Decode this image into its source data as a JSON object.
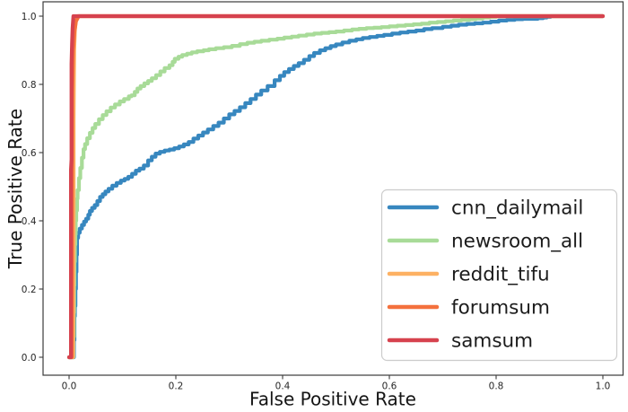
{
  "chart_data": {
    "type": "line",
    "subtype": "roc_curves",
    "title": "",
    "xlabel": "False Positive Rate",
    "ylabel": "True Positive Rate",
    "x_ticks": [
      "0.0",
      "0.2",
      "0.4",
      "0.6",
      "0.8",
      "1.0"
    ],
    "y_ticks": [
      "0.0",
      "0.2",
      "0.4",
      "0.6",
      "0.8",
      "1.0"
    ],
    "xlim": [
      -0.05,
      1.04
    ],
    "ylim": [
      -0.05,
      1.04
    ],
    "grid": false,
    "legend_position": "lower right",
    "series": [
      {
        "name": "cnn_dailymail",
        "color": "#3787bf",
        "step": true,
        "points": [
          [
            0,
            0
          ],
          [
            0.009,
            0
          ],
          [
            0.009,
            0.05
          ],
          [
            0.01,
            0.09
          ],
          [
            0.01,
            0.12
          ],
          [
            0.011,
            0.15
          ],
          [
            0.012,
            0.17
          ],
          [
            0.012,
            0.2
          ],
          [
            0.013,
            0.225
          ],
          [
            0.013,
            0.25
          ],
          [
            0.014,
            0.27
          ],
          [
            0.014,
            0.3
          ],
          [
            0.015,
            0.32
          ],
          [
            0.015,
            0.35
          ],
          [
            0.017,
            0.365
          ],
          [
            0.02,
            0.377
          ],
          [
            0.024,
            0.388
          ],
          [
            0.028,
            0.398
          ],
          [
            0.032,
            0.406
          ],
          [
            0.036,
            0.418
          ],
          [
            0.039,
            0.429
          ],
          [
            0.043,
            0.438
          ],
          [
            0.048,
            0.446
          ],
          [
            0.053,
            0.458
          ],
          [
            0.058,
            0.47
          ],
          [
            0.063,
            0.478
          ],
          [
            0.068,
            0.486
          ],
          [
            0.074,
            0.494
          ],
          [
            0.081,
            0.503
          ],
          [
            0.089,
            0.511
          ],
          [
            0.097,
            0.518
          ],
          [
            0.104,
            0.523
          ],
          [
            0.111,
            0.529
          ],
          [
            0.118,
            0.538
          ],
          [
            0.125,
            0.547
          ],
          [
            0.132,
            0.553
          ],
          [
            0.14,
            0.562
          ],
          [
            0.148,
            0.577
          ],
          [
            0.155,
            0.588
          ],
          [
            0.162,
            0.597
          ],
          [
            0.17,
            0.602
          ],
          [
            0.179,
            0.606
          ],
          [
            0.188,
            0.609
          ],
          [
            0.197,
            0.613
          ],
          [
            0.206,
            0.618
          ],
          [
            0.215,
            0.624
          ],
          [
            0.224,
            0.631
          ],
          [
            0.233,
            0.641
          ],
          [
            0.242,
            0.65
          ],
          [
            0.251,
            0.659
          ],
          [
            0.26,
            0.668
          ],
          [
            0.27,
            0.678
          ],
          [
            0.28,
            0.688
          ],
          [
            0.29,
            0.7
          ],
          [
            0.3,
            0.712
          ],
          [
            0.31,
            0.722
          ],
          [
            0.32,
            0.733
          ],
          [
            0.33,
            0.745
          ],
          [
            0.34,
            0.757
          ],
          [
            0.35,
            0.77
          ],
          [
            0.36,
            0.782
          ],
          [
            0.372,
            0.795
          ],
          [
            0.385,
            0.812
          ],
          [
            0.395,
            0.825
          ],
          [
            0.403,
            0.836
          ],
          [
            0.412,
            0.845
          ],
          [
            0.421,
            0.854
          ],
          [
            0.43,
            0.862
          ],
          [
            0.44,
            0.872
          ],
          [
            0.45,
            0.883
          ],
          [
            0.459,
            0.892
          ],
          [
            0.47,
            0.9
          ],
          [
            0.48,
            0.906
          ],
          [
            0.49,
            0.912
          ],
          [
            0.5,
            0.917
          ],
          [
            0.512,
            0.923
          ],
          [
            0.525,
            0.928
          ],
          [
            0.538,
            0.932
          ],
          [
            0.55,
            0.936
          ],
          [
            0.563,
            0.939
          ],
          [
            0.577,
            0.942
          ],
          [
            0.59,
            0.945
          ],
          [
            0.605,
            0.949
          ],
          [
            0.62,
            0.952
          ],
          [
            0.635,
            0.955
          ],
          [
            0.65,
            0.958
          ],
          [
            0.665,
            0.962
          ],
          [
            0.68,
            0.965
          ],
          [
            0.7,
            0.969
          ],
          [
            0.716,
            0.972
          ],
          [
            0.73,
            0.975
          ],
          [
            0.745,
            0.977
          ],
          [
            0.76,
            0.979
          ],
          [
            0.775,
            0.981
          ],
          [
            0.79,
            0.984
          ],
          [
            0.805,
            0.987
          ],
          [
            0.82,
            0.989
          ],
          [
            0.835,
            0.991
          ],
          [
            0.85,
            0.992
          ],
          [
            0.865,
            0.992
          ],
          [
            0.878,
            0.994
          ],
          [
            0.888,
            0.996
          ],
          [
            0.895,
            0.998
          ],
          [
            0.902,
            1.0
          ],
          [
            1,
            1
          ]
        ]
      },
      {
        "name": "newsroom_all",
        "color": "#a8db98",
        "step": true,
        "points": [
          [
            0,
            0
          ],
          [
            0.008,
            0
          ],
          [
            0.008,
            0.06
          ],
          [
            0.009,
            0.13
          ],
          [
            0.0095,
            0.21
          ],
          [
            0.01,
            0.28
          ],
          [
            0.011,
            0.33
          ],
          [
            0.0118,
            0.36
          ],
          [
            0.0125,
            0.4
          ],
          [
            0.0135,
            0.43
          ],
          [
            0.015,
            0.465
          ],
          [
            0.016,
            0.49
          ],
          [
            0.0185,
            0.525
          ],
          [
            0.021,
            0.555
          ],
          [
            0.024,
            0.585
          ],
          [
            0.027,
            0.61
          ],
          [
            0.03,
            0.625
          ],
          [
            0.034,
            0.642
          ],
          [
            0.039,
            0.658
          ],
          [
            0.044,
            0.672
          ],
          [
            0.049,
            0.684
          ],
          [
            0.056,
            0.698
          ],
          [
            0.063,
            0.71
          ],
          [
            0.07,
            0.721
          ],
          [
            0.078,
            0.732
          ],
          [
            0.086,
            0.741
          ],
          [
            0.095,
            0.75
          ],
          [
            0.103,
            0.757
          ],
          [
            0.112,
            0.765
          ],
          [
            0.117,
            0.768
          ],
          [
            0.123,
            0.778
          ],
          [
            0.128,
            0.788
          ],
          [
            0.134,
            0.795
          ],
          [
            0.141,
            0.803
          ],
          [
            0.148,
            0.81
          ],
          [
            0.155,
            0.818
          ],
          [
            0.163,
            0.827
          ],
          [
            0.171,
            0.838
          ],
          [
            0.179,
            0.848
          ],
          [
            0.188,
            0.856
          ],
          [
            0.194,
            0.866
          ],
          [
            0.198,
            0.875
          ],
          [
            0.205,
            0.881
          ],
          [
            0.212,
            0.886
          ],
          [
            0.221,
            0.89
          ],
          [
            0.23,
            0.894
          ],
          [
            0.24,
            0.897
          ],
          [
            0.252,
            0.9
          ],
          [
            0.262,
            0.903
          ],
          [
            0.275,
            0.906
          ],
          [
            0.29,
            0.909
          ],
          [
            0.305,
            0.913
          ],
          [
            0.32,
            0.918
          ],
          [
            0.334,
            0.922
          ],
          [
            0.347,
            0.925
          ],
          [
            0.36,
            0.928
          ],
          [
            0.375,
            0.931
          ],
          [
            0.39,
            0.934
          ],
          [
            0.403,
            0.937
          ],
          [
            0.417,
            0.94
          ],
          [
            0.43,
            0.943
          ],
          [
            0.445,
            0.946
          ],
          [
            0.459,
            0.949
          ],
          [
            0.473,
            0.951
          ],
          [
            0.487,
            0.953
          ],
          [
            0.5,
            0.955
          ],
          [
            0.515,
            0.958
          ],
          [
            0.53,
            0.961
          ],
          [
            0.543,
            0.963
          ],
          [
            0.557,
            0.965
          ],
          [
            0.571,
            0.966
          ],
          [
            0.585,
            0.968
          ],
          [
            0.6,
            0.97
          ],
          [
            0.615,
            0.972
          ],
          [
            0.63,
            0.974
          ],
          [
            0.645,
            0.976
          ],
          [
            0.66,
            0.978
          ],
          [
            0.675,
            0.981
          ],
          [
            0.69,
            0.983
          ],
          [
            0.705,
            0.985
          ],
          [
            0.72,
            0.987
          ],
          [
            0.735,
            0.989
          ],
          [
            0.75,
            0.991
          ],
          [
            0.762,
            0.993
          ],
          [
            0.775,
            0.996
          ],
          [
            0.788,
            0.998
          ],
          [
            0.8,
            1.0
          ],
          [
            1,
            1
          ]
        ]
      },
      {
        "name": "reddit_tifu",
        "color": "#fdb163",
        "step": false,
        "points": [
          [
            0,
            0
          ],
          [
            0.0075,
            0
          ],
          [
            0.0085,
            0.35
          ],
          [
            0.0085,
            0.7
          ],
          [
            0.0095,
            0.9
          ],
          [
            0.011,
            0.96
          ],
          [
            0.013,
            0.99
          ],
          [
            0.016,
            1.0
          ],
          [
            1,
            1
          ]
        ]
      },
      {
        "name": "forumsum",
        "color": "#f4713d",
        "step": false,
        "points": [
          [
            0,
            0
          ],
          [
            0.005,
            0
          ],
          [
            0.0055,
            0.45
          ],
          [
            0.006,
            0.78
          ],
          [
            0.0075,
            0.9
          ],
          [
            0.01,
            0.955
          ],
          [
            0.013,
            0.985
          ],
          [
            0.018,
            1.0
          ],
          [
            1,
            1
          ]
        ]
      },
      {
        "name": "samsum",
        "color": "#d6424e",
        "step": false,
        "points": [
          [
            0,
            0
          ],
          [
            0.0035,
            0
          ],
          [
            0.0035,
            0.55
          ],
          [
            0.0045,
            0.58
          ],
          [
            0.0045,
            0.86
          ],
          [
            0.0055,
            0.92
          ],
          [
            0.0065,
            0.965
          ],
          [
            0.008,
            1.0
          ],
          [
            1,
            1
          ]
        ]
      }
    ]
  }
}
